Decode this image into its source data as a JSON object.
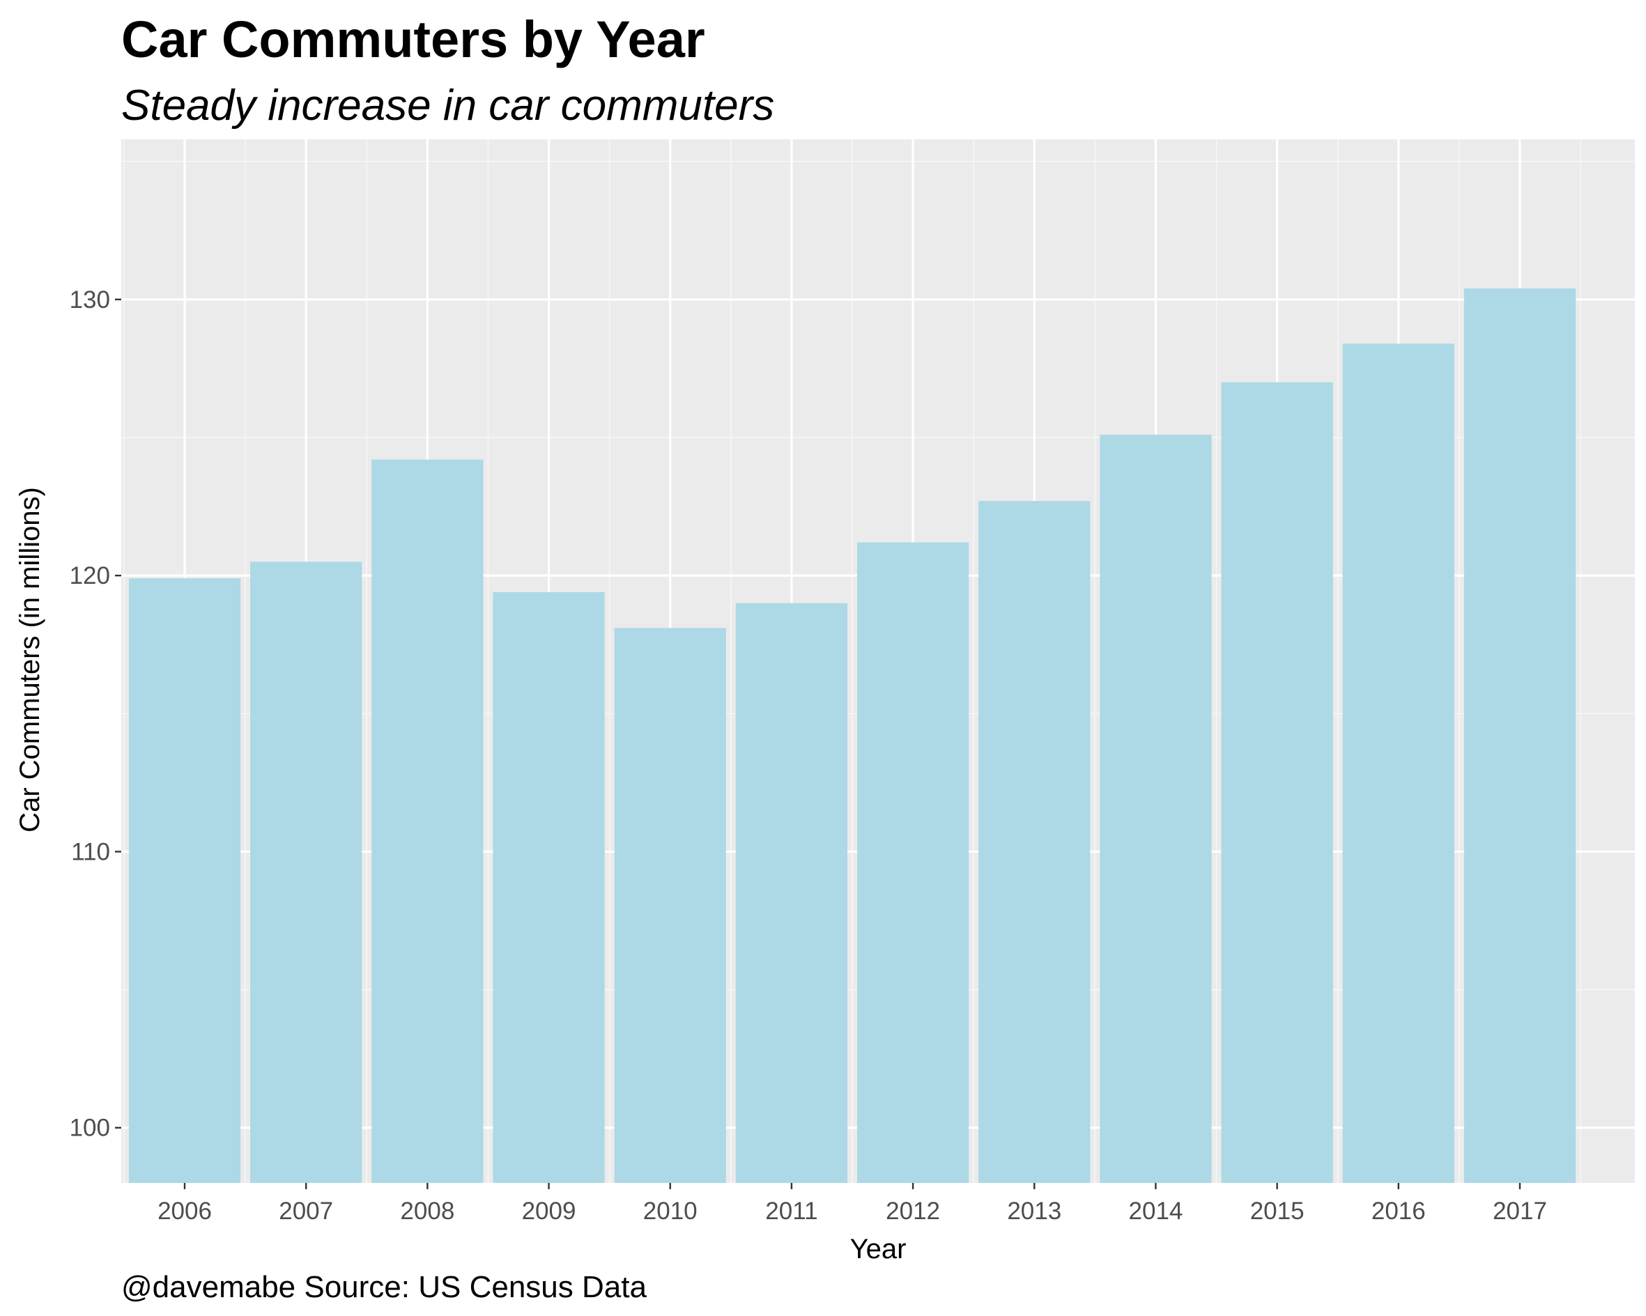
{
  "chart_data": {
    "type": "bar",
    "title": "Car Commuters by Year",
    "subtitle": "Steady increase in car commuters",
    "xlabel": "Year",
    "ylabel": "Car Commuters (in millions)",
    "caption": "@davemabe Source: US Census Data",
    "categories": [
      "2006",
      "2007",
      "2008",
      "2009",
      "2010",
      "2011",
      "2012",
      "2013",
      "2014",
      "2015",
      "2016",
      "2017"
    ],
    "values": [
      119.9,
      120.5,
      124.2,
      119.4,
      118.1,
      119.0,
      121.2,
      122.7,
      125.1,
      127.0,
      128.4,
      130.4
    ],
    "ylim": [
      98.0,
      135.8
    ],
    "yticks": [
      100,
      110,
      120,
      130
    ],
    "grid": true,
    "legend": "none",
    "colors": {
      "bar": "#add8e6",
      "panel": "#ebebeb",
      "grid_major": "#ffffff",
      "grid_minor": "#f6f6f6",
      "tick": "#333333"
    }
  }
}
